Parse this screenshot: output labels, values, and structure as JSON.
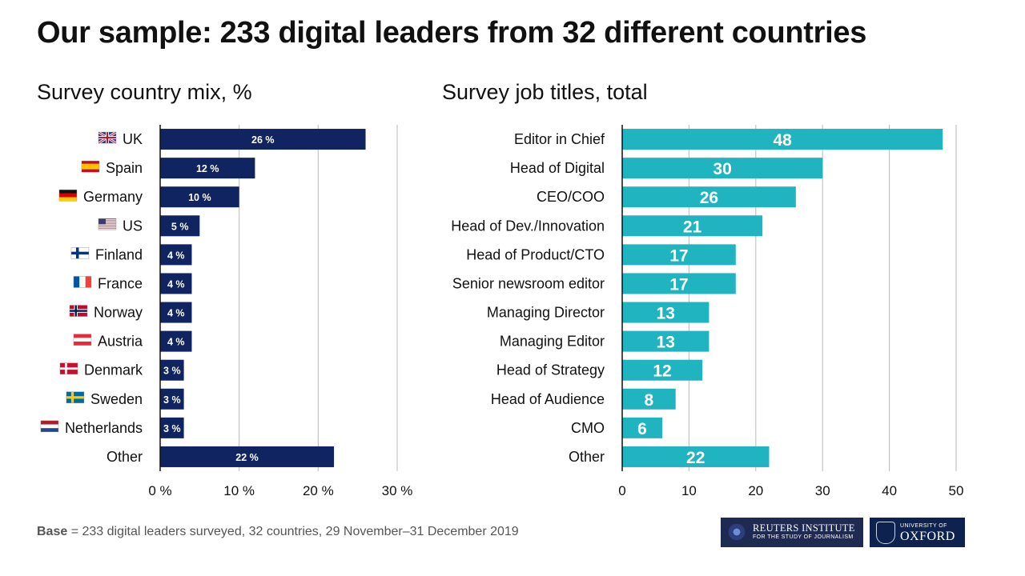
{
  "title": "Our sample: 233 digital leaders from 32 different countries",
  "footer": {
    "base_label": "Base",
    "base_text": " = 233 digital leaders surveyed, 32 countries, 29 November–31 December 2019"
  },
  "logos": {
    "reuters_line1": "REUTERS INSTITUTE",
    "reuters_line2": "FOR THE STUDY OF JOURNALISM",
    "oxford_line1": "OXFORD",
    "oxford_line2": "UNIVERSITY OF"
  },
  "chart_data": [
    {
      "type": "bar",
      "orientation": "horizontal",
      "title": "Survey country mix, %",
      "categories": [
        "UK",
        "Spain",
        "Germany",
        "US",
        "Finland",
        "France",
        "Norway",
        "Austria",
        "Denmark",
        "Sweden",
        "Netherlands",
        "Other"
      ],
      "values": [
        26,
        12,
        10,
        5,
        4,
        4,
        4,
        4,
        3,
        3,
        3,
        22
      ],
      "value_labels": [
        "26 %",
        "12 %",
        "10 %",
        "5 %",
        "4 %",
        "4 %",
        "4 %",
        "4 %",
        "3 %",
        "3 %",
        "3 %",
        "22 %"
      ],
      "flags": [
        "uk-flag-icon",
        "spain-flag-icon",
        "germany-flag-icon",
        "us-flag-icon",
        "finland-flag-icon",
        "france-flag-icon",
        "norway-flag-icon",
        "austria-flag-icon",
        "denmark-flag-icon",
        "sweden-flag-icon",
        "netherlands-flag-icon",
        ""
      ],
      "xlim": [
        0,
        30
      ],
      "ticks": [
        0,
        10,
        20,
        30
      ],
      "tick_labels": [
        "0 %",
        "10 %",
        "20 %",
        "30 %"
      ],
      "grid": true,
      "color": "#0f2460"
    },
    {
      "type": "bar",
      "orientation": "horizontal",
      "title": "Survey job titles, total",
      "categories": [
        "Editor in Chief",
        "Head of Digital",
        "CEO/COO",
        "Head of Dev./Innovation",
        "Head of Product/CTO",
        "Senior newsroom editor",
        "Managing Director",
        "Managing Editor",
        "Head of Strategy",
        "Head of Audience",
        "CMO",
        "Other"
      ],
      "values": [
        48,
        30,
        26,
        21,
        17,
        17,
        13,
        13,
        12,
        8,
        6,
        22
      ],
      "value_labels": [
        "48",
        "30",
        "26",
        "21",
        "17",
        "17",
        "13",
        "13",
        "12",
        "8",
        "6",
        "22"
      ],
      "xlim": [
        0,
        50
      ],
      "ticks": [
        0,
        10,
        20,
        30,
        40,
        50
      ],
      "tick_labels": [
        "0",
        "10",
        "20",
        "30",
        "40",
        "50"
      ],
      "grid": true,
      "color": "#20b4c0"
    }
  ]
}
